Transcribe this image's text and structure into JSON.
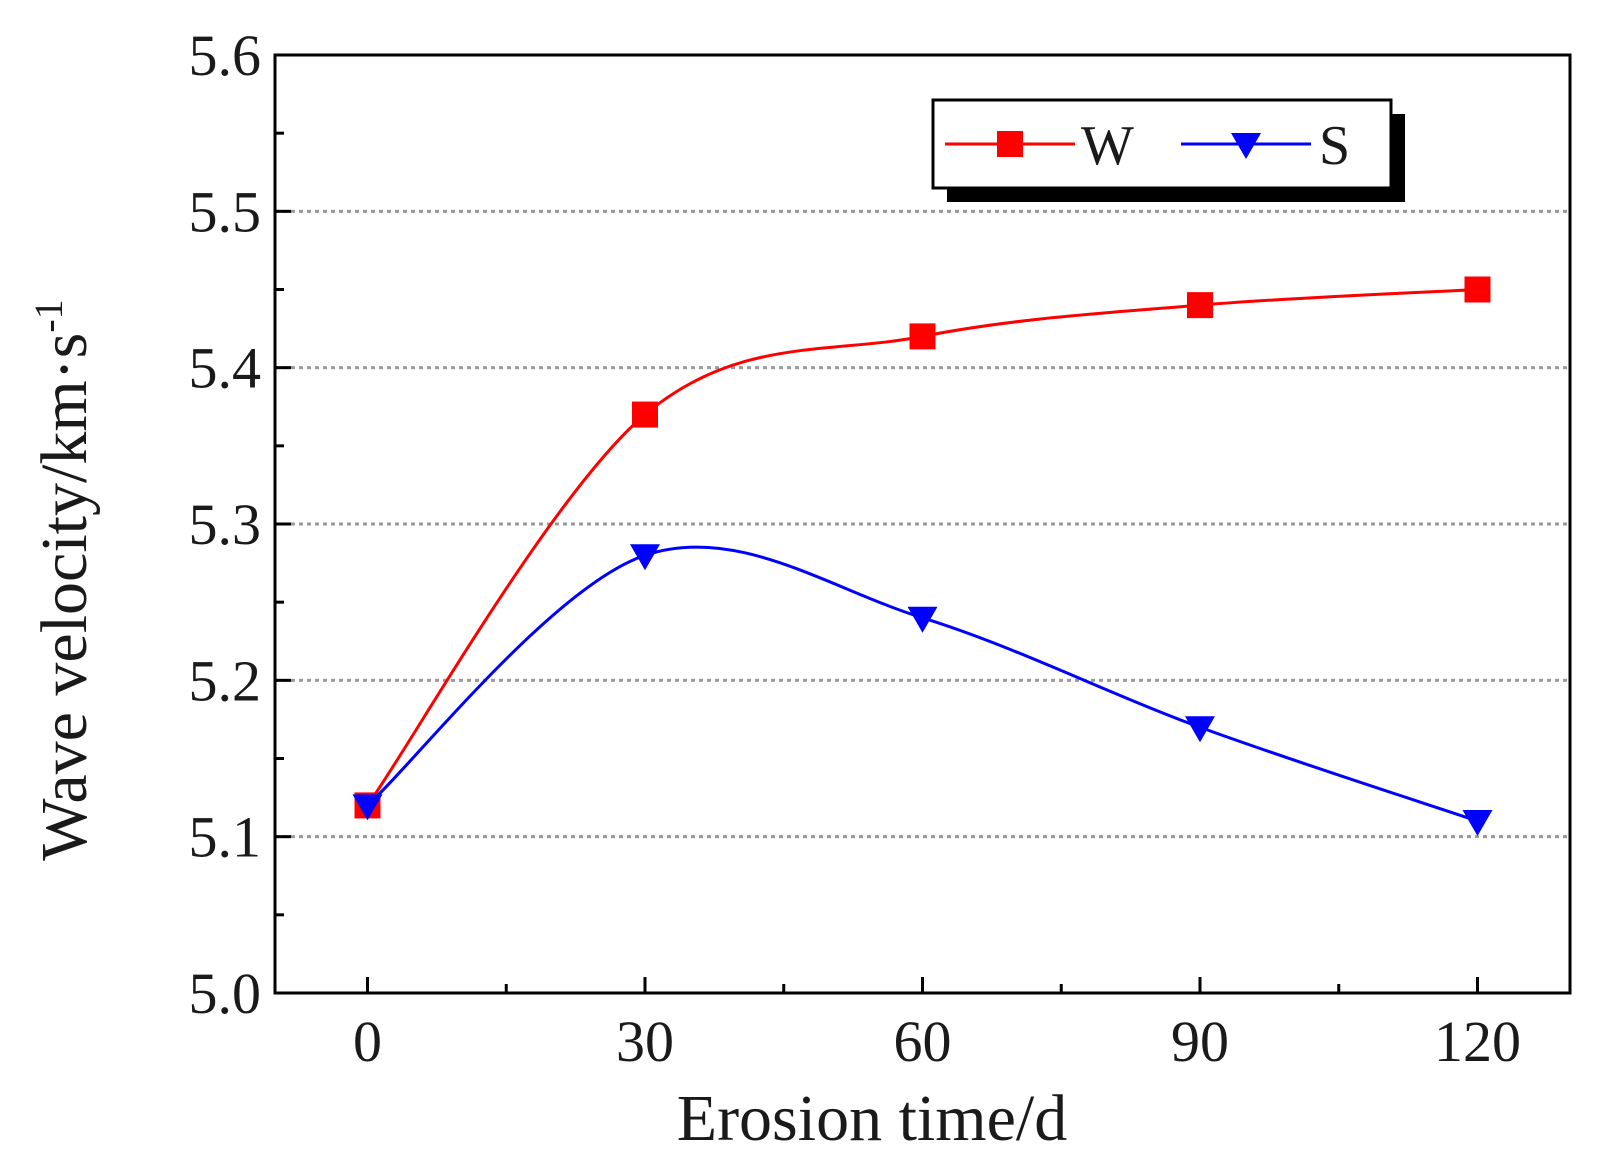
{
  "chart_data": {
    "type": "line",
    "title": "",
    "xlabel": "Erosion time/d",
    "ylabel_main": "Wave velocity/km·s",
    "ylabel_sup": "-1",
    "x": [
      0,
      30,
      60,
      90,
      120
    ],
    "x_tick_labels": [
      "0",
      "30",
      "60",
      "90",
      "120"
    ],
    "y_tick_labels": [
      "5.0",
      "5.1",
      "5.2",
      "5.3",
      "5.4",
      "5.5",
      "5.6"
    ],
    "xlim": [
      -10,
      130
    ],
    "ylim": [
      5.0,
      5.6
    ],
    "y_ticks": [
      5.0,
      5.1,
      5.2,
      5.3,
      5.4,
      5.5,
      5.6
    ],
    "gridlines": [
      5.1,
      5.2,
      5.3,
      5.4,
      5.5
    ],
    "series": [
      {
        "name": "W",
        "marker": "square",
        "color": "#ff0000",
        "values": [
          5.12,
          5.37,
          5.42,
          5.44,
          5.45
        ]
      },
      {
        "name": "S",
        "marker": "triangle-down",
        "color": "#0000ff",
        "values": [
          5.12,
          5.28,
          5.24,
          5.17,
          5.11
        ]
      }
    ],
    "legend_position": "top-right"
  }
}
